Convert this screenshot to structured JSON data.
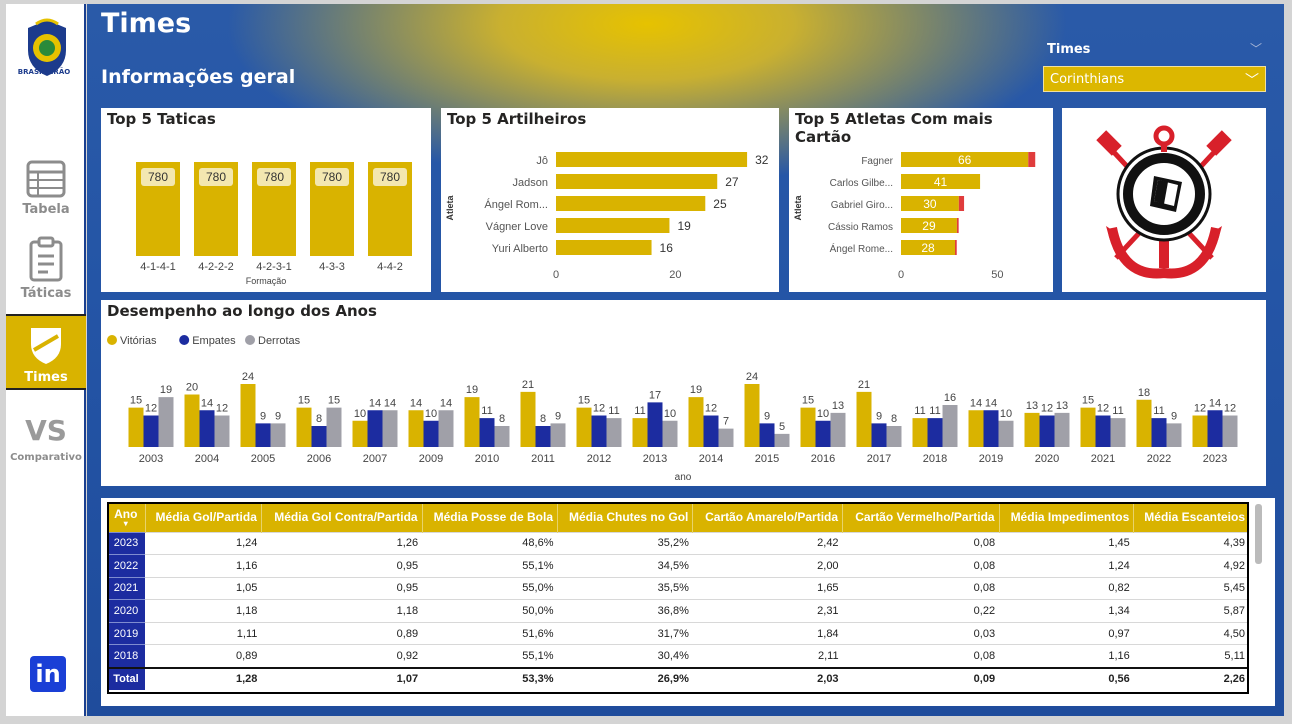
{
  "sidebar": {
    "logo_text": "BRASILEIRÃO",
    "items": [
      {
        "label": "Tabela",
        "icon": "table-icon"
      },
      {
        "label": "Táticas",
        "icon": "clipboard-icon"
      },
      {
        "label": "Times",
        "icon": "shield-icon"
      },
      {
        "label": "Comparativo",
        "icon": "vs-icon",
        "big": "VS"
      }
    ],
    "linkedin": "in"
  },
  "header": {
    "title": "Times",
    "subtitle": "Informações geral",
    "slicer_label": "Times",
    "slicer_value": "Corinthians"
  },
  "cards": {
    "tactics_title": "Top 5 Taticas",
    "scorers_title": "Top 5 Artilheiros",
    "cards_title": "Top 5 Atletas Com mais Cartão",
    "perf_title": "Desempenho ao longo dos Anos"
  },
  "colors": {
    "gold": "#d9b300",
    "navy": "#1c2ca0",
    "grey": "#a0a0a8",
    "red": "#e03c3c"
  },
  "chart_data": [
    {
      "type": "bar",
      "title": "Top 5 Taticas",
      "xlabel": "Formação",
      "categories": [
        "4-1-4-1",
        "4-2-2-2",
        "4-2-3-1",
        "4-3-3",
        "4-4-2"
      ],
      "values": [
        780,
        780,
        780,
        780,
        780
      ]
    },
    {
      "type": "bar",
      "orientation": "horizontal",
      "title": "Top 5 Artilheiros",
      "ylabel": "Atleta",
      "categories": [
        "Jô",
        "Jadson",
        "Ángel Rom...",
        "Vágner Love",
        "Yuri Alberto"
      ],
      "values": [
        32,
        27,
        25,
        19,
        16
      ],
      "xticks": [
        "0",
        "20"
      ],
      "xlim": [
        0,
        35
      ]
    },
    {
      "type": "bar",
      "orientation": "horizontal",
      "stacked": true,
      "title": "Top 5 Atletas Com mais Cartão",
      "ylabel": "Atleta",
      "categories": [
        "Fagner",
        "Carlos Gilbe...",
        "Gabriel Giro...",
        "Cássio Ramos",
        "Ángel Rome..."
      ],
      "values": [
        66,
        41,
        30,
        29,
        28
      ],
      "red_values": [
        4,
        0,
        3,
        1,
        1
      ],
      "xticks": [
        "0",
        "50"
      ],
      "xlim": [
        0,
        70
      ]
    },
    {
      "type": "bar",
      "title": "Desempenho ao longo dos Anos",
      "xlabel": "ano",
      "legend": "top-left",
      "categories": [
        "2003",
        "2004",
        "2005",
        "2006",
        "2007",
        "2009",
        "2010",
        "2011",
        "2012",
        "2013",
        "2014",
        "2015",
        "2016",
        "2017",
        "2018",
        "2019",
        "2020",
        "2021",
        "2022",
        "2023"
      ],
      "series": [
        {
          "name": "Vitórias",
          "values": [
            15,
            20,
            24,
            15,
            10,
            14,
            19,
            21,
            15,
            11,
            19,
            24,
            15,
            21,
            11,
            14,
            13,
            15,
            18,
            12
          ]
        },
        {
          "name": "Empates",
          "values": [
            12,
            14,
            9,
            8,
            14,
            10,
            11,
            8,
            12,
            17,
            12,
            9,
            10,
            9,
            11,
            14,
            12,
            12,
            11,
            14
          ]
        },
        {
          "name": "Derrotas",
          "values": [
            19,
            12,
            9,
            15,
            14,
            14,
            8,
            9,
            11,
            10,
            7,
            5,
            13,
            8,
            16,
            10,
            13,
            11,
            9,
            12
          ]
        }
      ]
    }
  ],
  "table": {
    "headers": [
      "Ano",
      "Média Gol/Partida",
      "Média Gol Contra/Partida",
      "Média Posse de Bola",
      "Média Chutes no Gol",
      "Cartão Amarelo/Partida",
      "Cartão Vermelho/Partida",
      "Média Impedimentos",
      "Média Escanteios"
    ],
    "rows": [
      [
        "2023",
        "1,24",
        "1,26",
        "48,6%",
        "35,2%",
        "2,42",
        "0,08",
        "1,45",
        "4,39"
      ],
      [
        "2022",
        "1,16",
        "0,95",
        "55,1%",
        "34,5%",
        "2,00",
        "0,08",
        "1,24",
        "4,92"
      ],
      [
        "2021",
        "1,05",
        "0,95",
        "55,0%",
        "35,5%",
        "1,65",
        "0,08",
        "0,82",
        "5,45"
      ],
      [
        "2020",
        "1,18",
        "1,18",
        "50,0%",
        "36,8%",
        "2,31",
        "0,22",
        "1,34",
        "5,87"
      ],
      [
        "2019",
        "1,11",
        "0,89",
        "51,6%",
        "31,7%",
        "1,84",
        "0,03",
        "0,97",
        "4,50"
      ],
      [
        "2018",
        "0,89",
        "0,92",
        "55,1%",
        "30,4%",
        "2,11",
        "0,08",
        "1,16",
        "5,11"
      ]
    ],
    "total": [
      "Total",
      "1,28",
      "1,07",
      "53,3%",
      "26,9%",
      "2,03",
      "0,09",
      "0,56",
      "2,26"
    ]
  }
}
